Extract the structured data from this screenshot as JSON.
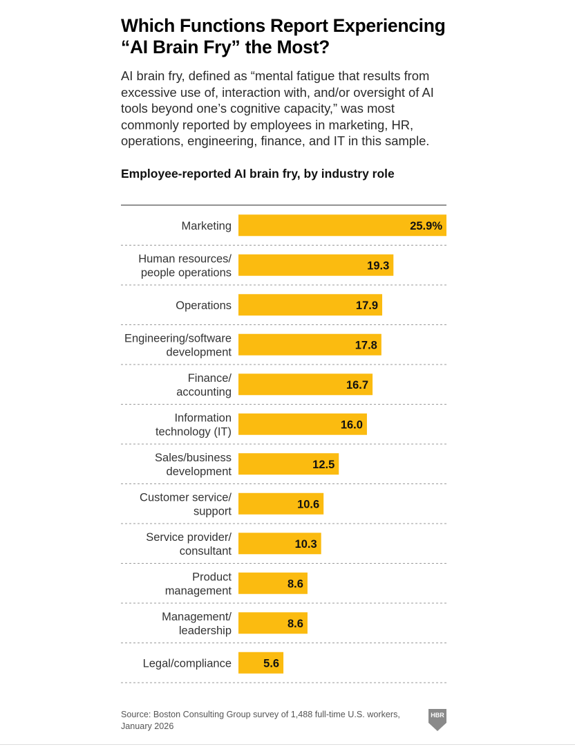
{
  "header": {
    "title": "Which Functions Report Experiencing “AI Brain Fry” the Most?",
    "subtitle": "AI brain fry, defined as “mental fatigue that results from excessive use of, interaction with, and/or oversight of AI tools beyond one’s cognitive capacity,” was most commonly reported by employees in marketing, HR, operations, engineering, finance, and IT in this sample."
  },
  "footer": {
    "source": "Source: Boston Consulting Group survey of 1,488 full-time U.S. workers, January 2026",
    "logo": "HBR"
  },
  "colors": {
    "bar": "#FBBB10",
    "text": "#111111",
    "rule": "#333333",
    "divider": "#999999"
  },
  "chart_data": {
    "type": "bar",
    "orientation": "horizontal",
    "title": "Employee-reported AI brain fry, by industry role",
    "xlabel": "",
    "ylabel": "",
    "unit": "%",
    "xlim": [
      0,
      25.9
    ],
    "grid": false,
    "legend": "none",
    "categories": [
      [
        "Marketing"
      ],
      [
        "Human resources/",
        "people operations"
      ],
      [
        "Operations"
      ],
      [
        "Engineering/software",
        "development"
      ],
      [
        "Finance/",
        "accounting"
      ],
      [
        "Information",
        "technology (IT)"
      ],
      [
        "Sales/business",
        "development"
      ],
      [
        "Customer service/",
        "support"
      ],
      [
        "Service provider/",
        "consultant"
      ],
      [
        "Product",
        "management"
      ],
      [
        "Management/",
        "leadership"
      ],
      [
        "Legal/compliance"
      ]
    ],
    "values": [
      25.9,
      19.3,
      17.9,
      17.8,
      16.7,
      16.0,
      12.5,
      10.6,
      10.3,
      8.6,
      8.6,
      5.6
    ],
    "value_labels": [
      "25.9%",
      "19.3",
      "17.9",
      "17.8",
      "16.7",
      "16.0",
      "12.5",
      "10.6",
      "10.3",
      "8.6",
      "8.6",
      "5.6"
    ]
  }
}
